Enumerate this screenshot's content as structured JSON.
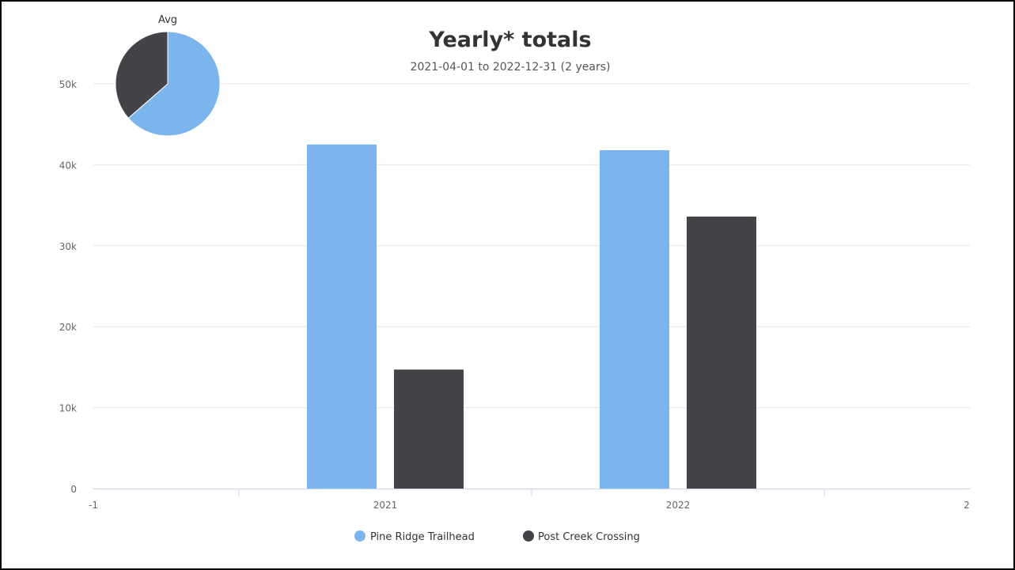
{
  "chart_data": {
    "type": "bar",
    "title": "Yearly* totals",
    "subtitle": "2021-04-01 to 2022-12-31 (2 years)",
    "x_ticks": [
      "-1",
      "2021",
      "2022",
      "2"
    ],
    "y_ticks": [
      "0",
      "10k",
      "20k",
      "30k",
      "40k",
      "50k"
    ],
    "ylim": [
      0,
      55000
    ],
    "categories": [
      "2021",
      "2022"
    ],
    "series": [
      {
        "name": "Pine Ridge Trailhead",
        "color": "#7cb5ec",
        "values": [
          42500,
          41800
        ]
      },
      {
        "name": "Post Creek Crossing",
        "color": "#434348",
        "values": [
          14700,
          33600
        ]
      }
    ],
    "grid": true,
    "legend": "bottom-center",
    "inset_pie": {
      "title": "Avg",
      "slices": [
        {
          "name": "Pine Ridge Trailhead",
          "color": "#7cb5ec",
          "value": 42150
        },
        {
          "name": "Post Creek Crossing",
          "color": "#434348",
          "value": 24150
        }
      ]
    }
  }
}
